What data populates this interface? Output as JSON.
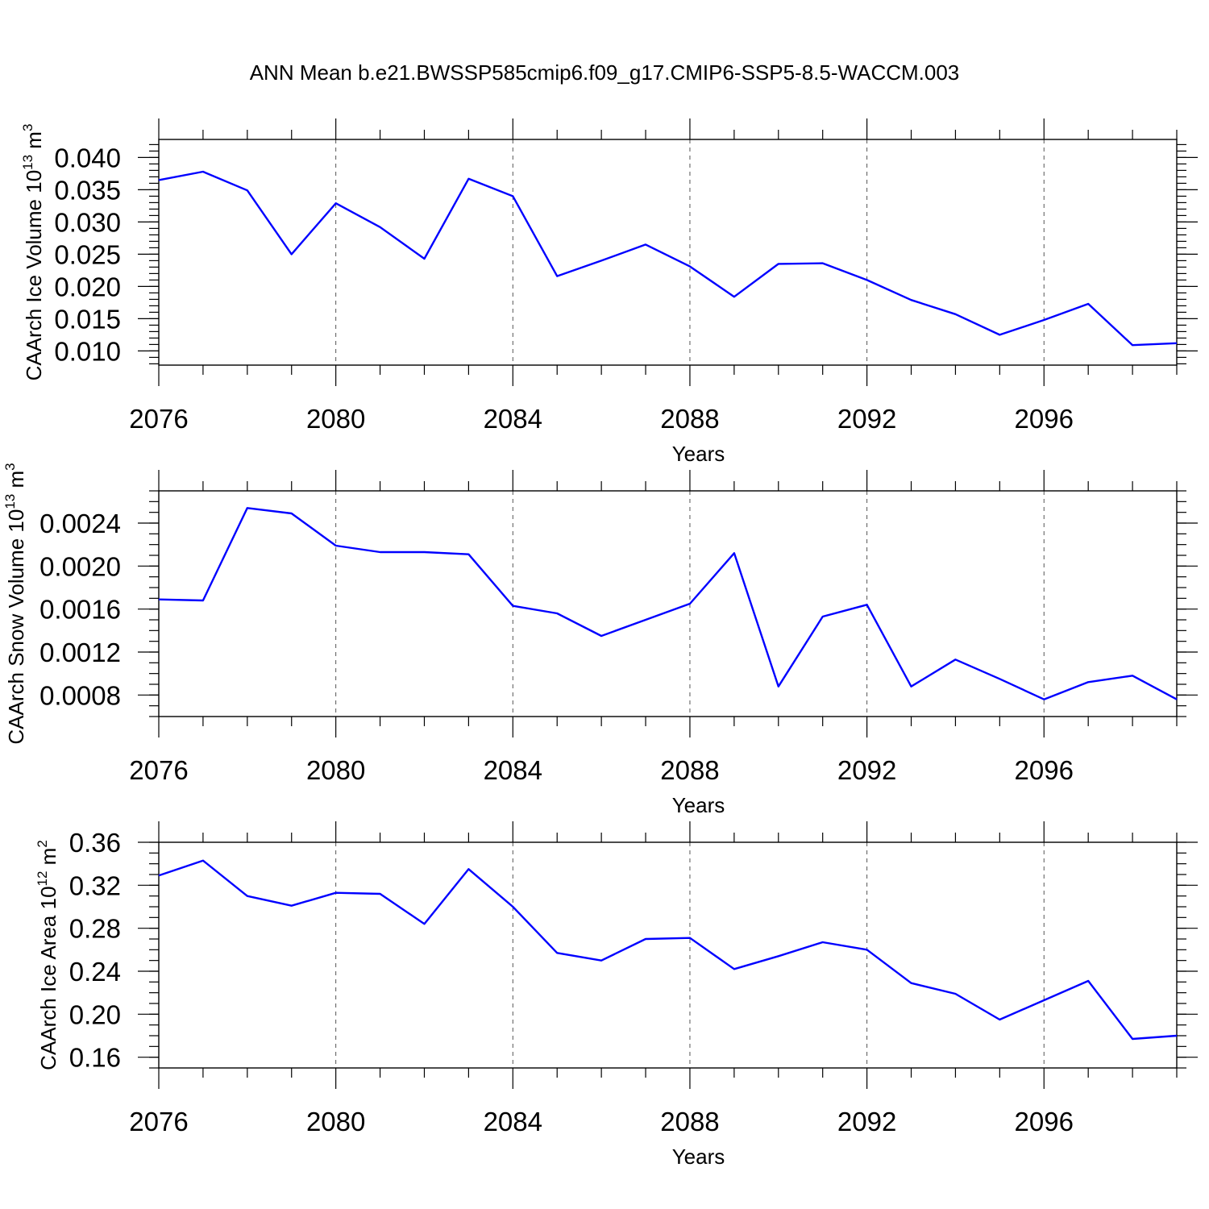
{
  "title": "ANN Mean b.e21.BWSSP585cmip6.f09_g17.CMIP6-SSP5-8.5-WACCM.003",
  "colors": {
    "line": "#0000ff",
    "axis": "#000000",
    "grid": "#555555"
  },
  "chart_data": [
    {
      "type": "line",
      "ylabel": "CAArch Ice Volume 10",
      "ylabel_exp": "13",
      "ylabel_unit": "m",
      "ylabel_unit_exp": "3",
      "xlabel": "Years",
      "xlim": [
        2076,
        2099
      ],
      "ylim": [
        0.0078,
        0.0428
      ],
      "x_ticks": [
        2076,
        2080,
        2084,
        2088,
        2092,
        2096
      ],
      "x_tick_labels": [
        "2076",
        "2080",
        "2084",
        "2088",
        "2092",
        "2096"
      ],
      "y_ticks": [
        0.01,
        0.015,
        0.02,
        0.025,
        0.03,
        0.035,
        0.04
      ],
      "y_tick_labels": [
        "0.010",
        "0.015",
        "0.020",
        "0.025",
        "0.030",
        "0.035",
        "0.040"
      ],
      "y_minor_step": 0.001,
      "grid": "x-dashed",
      "x": [
        2076,
        2077,
        2078,
        2079,
        2080,
        2081,
        2082,
        2083,
        2084,
        2085,
        2086,
        2087,
        2088,
        2089,
        2090,
        2091,
        2092,
        2093,
        2094,
        2095,
        2096,
        2097,
        2098,
        2099
      ],
      "y": [
        0.0365,
        0.0378,
        0.0349,
        0.025,
        0.0329,
        0.0292,
        0.0243,
        0.0367,
        0.034,
        0.0216,
        0.024,
        0.0265,
        0.0231,
        0.0184,
        0.0235,
        0.0236,
        0.021,
        0.0179,
        0.0157,
        0.0125,
        0.0148,
        0.0173,
        0.0109,
        0.0112
      ]
    },
    {
      "type": "line",
      "ylabel": "CAArch Snow Volume 10",
      "ylabel_exp": "13",
      "ylabel_unit": "m",
      "ylabel_unit_exp": "3",
      "xlabel": "Years",
      "xlim": [
        2076,
        2099
      ],
      "ylim": [
        0.0006,
        0.0027
      ],
      "x_ticks": [
        2076,
        2080,
        2084,
        2088,
        2092,
        2096
      ],
      "x_tick_labels": [
        "2076",
        "2080",
        "2084",
        "2088",
        "2092",
        "2096"
      ],
      "y_ticks": [
        0.0008,
        0.0012,
        0.0016,
        0.002,
        0.0024
      ],
      "y_tick_labels": [
        "0.0008",
        "0.0012",
        "0.0016",
        "0.0020",
        "0.0024"
      ],
      "y_minor_step": 0.0001,
      "grid": "x-dashed",
      "x": [
        2076,
        2077,
        2078,
        2079,
        2080,
        2081,
        2082,
        2083,
        2084,
        2085,
        2086,
        2087,
        2088,
        2089,
        2090,
        2091,
        2092,
        2093,
        2094,
        2095,
        2096,
        2097,
        2098,
        2099
      ],
      "y": [
        0.00169,
        0.00168,
        0.00254,
        0.00249,
        0.00219,
        0.00213,
        0.00213,
        0.00211,
        0.00163,
        0.00156,
        0.00135,
        0.0015,
        0.00165,
        0.00212,
        0.00088,
        0.00153,
        0.00164,
        0.00088,
        0.00113,
        0.00095,
        0.00076,
        0.00092,
        0.00098,
        0.00076
      ]
    },
    {
      "type": "line",
      "ylabel": "CAArch Ice Area 10",
      "ylabel_exp": "12",
      "ylabel_unit": "m",
      "ylabel_unit_exp": "2",
      "xlabel": "Years",
      "xlim": [
        2076,
        2099
      ],
      "ylim": [
        0.15,
        0.36
      ],
      "x_ticks": [
        2076,
        2080,
        2084,
        2088,
        2092,
        2096
      ],
      "x_tick_labels": [
        "2076",
        "2080",
        "2084",
        "2088",
        "2092",
        "2096"
      ],
      "y_ticks": [
        0.16,
        0.2,
        0.24,
        0.28,
        0.32,
        0.36
      ],
      "y_tick_labels": [
        "0.16",
        "0.20",
        "0.24",
        "0.28",
        "0.32",
        "0.36"
      ],
      "y_minor_step": 0.01,
      "grid": "x-dashed",
      "x": [
        2076,
        2077,
        2078,
        2079,
        2080,
        2081,
        2082,
        2083,
        2084,
        2085,
        2086,
        2087,
        2088,
        2089,
        2090,
        2091,
        2092,
        2093,
        2094,
        2095,
        2096,
        2097,
        2098,
        2099
      ],
      "y": [
        0.329,
        0.343,
        0.31,
        0.301,
        0.313,
        0.312,
        0.284,
        0.335,
        0.3,
        0.257,
        0.25,
        0.27,
        0.271,
        0.242,
        0.254,
        0.267,
        0.26,
        0.229,
        0.219,
        0.195,
        0.213,
        0.231,
        0.177,
        0.18
      ]
    }
  ]
}
